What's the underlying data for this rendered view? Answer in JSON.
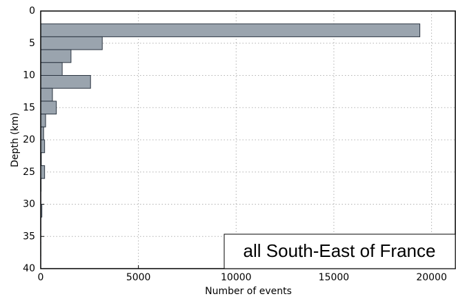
{
  "chart_data": {
    "type": "histogram",
    "orientation": "horizontal",
    "xlabel": "Number of events",
    "ylabel": "Depth (km)",
    "annotation": "all South-East of France",
    "bins": [
      0,
      2,
      4,
      6,
      8,
      10,
      12,
      14,
      16,
      18,
      20,
      22,
      24,
      26,
      28,
      30,
      32,
      34,
      36,
      38,
      40
    ],
    "counts": [
      0,
      19400,
      3150,
      1550,
      1100,
      2550,
      600,
      800,
      250,
      150,
      200,
      30,
      200,
      20,
      10,
      60,
      10,
      5,
      5,
      3
    ],
    "color": "#9aa4ae",
    "edgecolor": "#2a3440",
    "xlim": [
      0,
      21250
    ],
    "xticks": [
      0,
      5000,
      10000,
      15000,
      20000
    ],
    "ylim": [
      0,
      40
    ],
    "yticks": [
      0,
      5,
      10,
      15,
      20,
      25,
      30,
      35,
      40
    ],
    "y_inverted": true,
    "grid": true
  }
}
